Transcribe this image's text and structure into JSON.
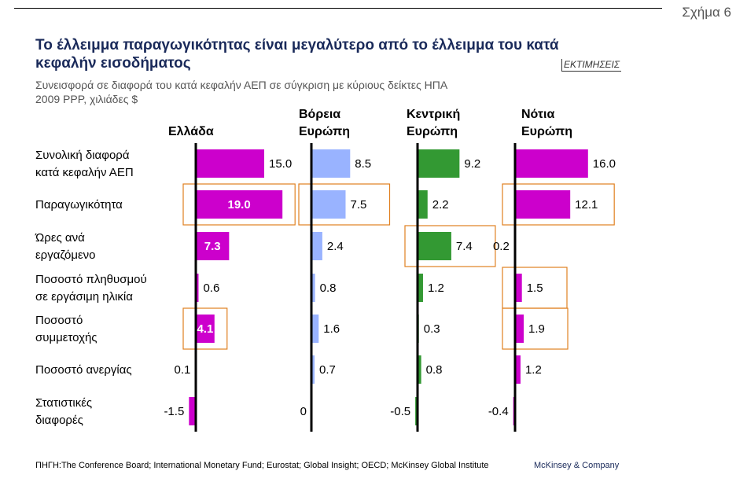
{
  "figure_label": "Σχήμα 6",
  "estimate_tag": "ΕΚΤΙΜΗΣΕΙΣ",
  "source": "ΠΗΓΗ:The Conference Board; International Monetary Fund; Eurostat; Global Insight; OECD; McKinsey Global Institute",
  "brand": "McKinsey & Company",
  "chart_data": {
    "type": "bar",
    "orientation": "horizontal",
    "title": "Το έλλειμμα παραγωγικότητας είναι μεγαλύτερο από το έλλειμμα του κατά κεφαλήν εισοδήματος",
    "subtitle": "Συνεισφορά σε διαφορά του κατά κεφαλήν ΑΕΠ σε σύγκριση με κύριους δείκτες ΗΠΑ",
    "units": "2009 PPP, χιλιάδες $",
    "categories": [
      [
        "Συνολική διαφορά",
        "κατά κεφαλήν ΑΕΠ"
      ],
      [
        "Παραγωγικότητα"
      ],
      [
        "Ώρες ανά",
        "εργαζόμενο"
      ],
      [
        "Ποσοστό πληθυσμού",
        "σε εργάσιμη ηλικία"
      ],
      [
        "Ποσοστό",
        "συμμετοχής"
      ],
      [
        "Ποσοστό ανεργίας"
      ],
      [
        "Στατιστικές",
        "διαφορές"
      ]
    ],
    "series": [
      {
        "name": [
          "Ελλάδα"
        ],
        "color": "#cc00cc",
        "values": [
          15.0,
          19.0,
          7.3,
          0.6,
          4.1,
          0.1,
          -1.5
        ],
        "labels": [
          "15.0",
          "19.0",
          "7.3",
          "0.6",
          "4.1",
          "0.1",
          "-1.5"
        ],
        "highlight": [
          1,
          4
        ]
      },
      {
        "name": [
          "Βόρεια",
          "Ευρώπη"
        ],
        "color": "#99b3ff",
        "values": [
          8.5,
          7.5,
          2.4,
          0.8,
          1.6,
          0.7,
          0
        ],
        "labels": [
          "8.5",
          "7.5",
          "2.4",
          "0.8",
          "1.6",
          "0.7",
          "0"
        ],
        "highlight": [
          1
        ]
      },
      {
        "name": [
          "Κεντρική",
          "Ευρώπη"
        ],
        "color": "#339933",
        "values": [
          9.2,
          2.2,
          7.4,
          1.2,
          0.3,
          0.8,
          -0.5
        ],
        "labels": [
          "9.2",
          "2.2",
          "7.4",
          "1.2",
          "0.3",
          "0.8",
          "-0.5"
        ],
        "highlight": [
          2
        ]
      },
      {
        "name": [
          "Νότια",
          "Ευρώπη"
        ],
        "color": "#cc00cc",
        "values": [
          16.0,
          12.1,
          0.2,
          1.5,
          1.9,
          1.2,
          -0.4
        ],
        "labels": [
          "16.0",
          "12.1",
          "0.2",
          "1.5",
          "1.9",
          "1.2",
          "-0.4"
        ],
        "highlight": [
          1,
          3,
          4
        ]
      }
    ],
    "highlight_color": "#e08020",
    "grid": false,
    "legend": "none"
  }
}
